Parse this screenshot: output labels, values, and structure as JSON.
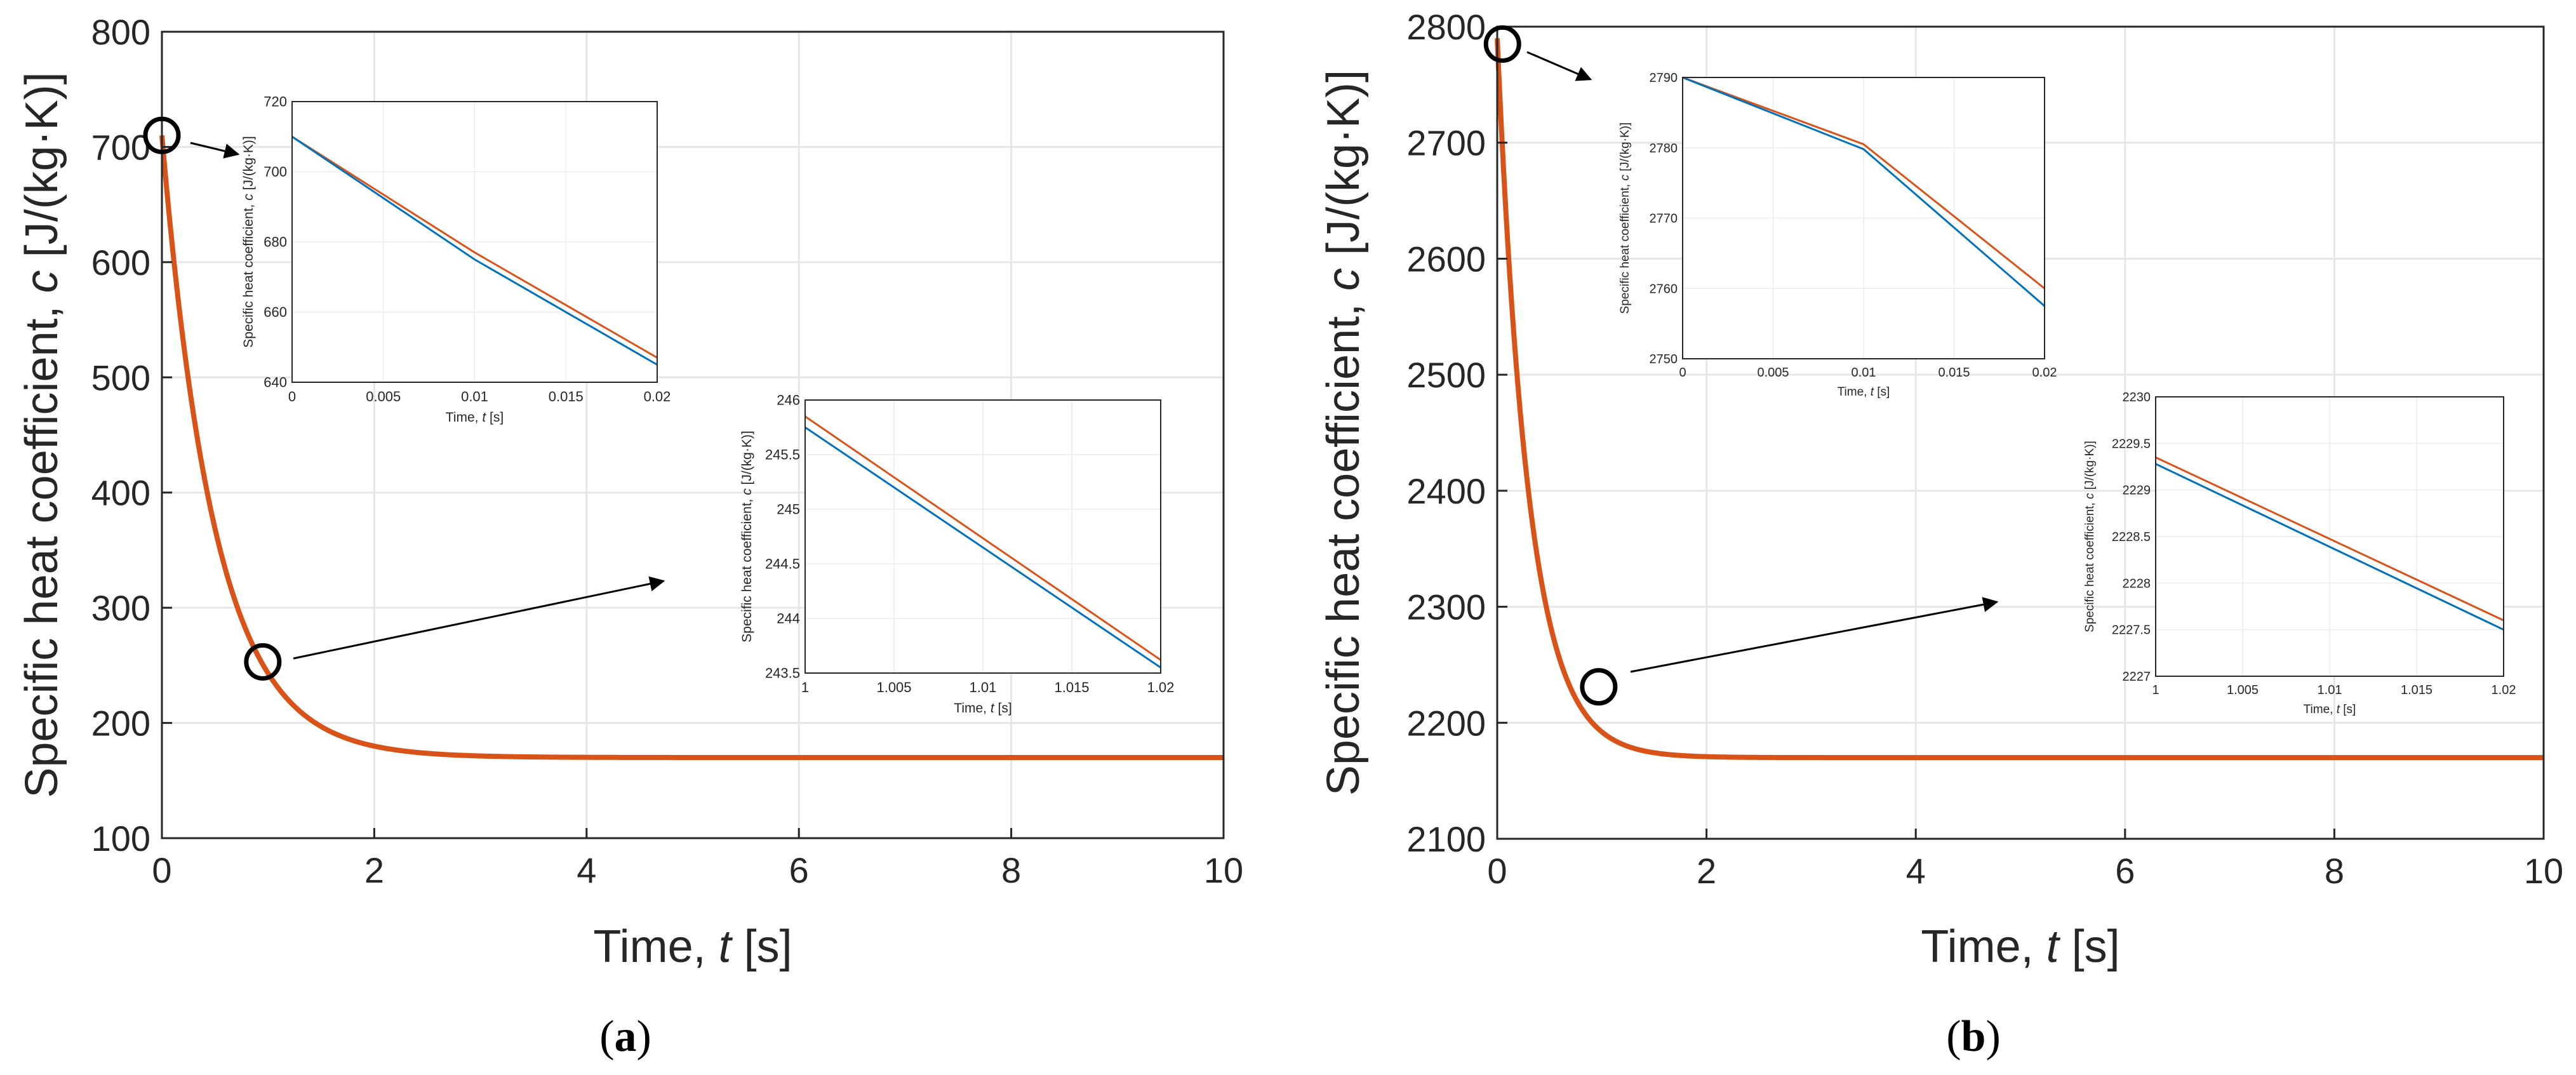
{
  "figure": {
    "panels": [
      {
        "caption_letter": "a",
        "chart_data": {
          "type": "line",
          "ylabel_prefix": "Specific heat coefficient, ",
          "ylabel_symbol": "c",
          "ylabel_suffix": " [J/(kg·K)]",
          "xlabel_prefix": "Time, ",
          "xlabel_symbol": "t",
          "xlabel_suffix": " [s]",
          "xlim": [
            0,
            10
          ],
          "ylim": [
            100,
            800
          ],
          "xticks": [
            0,
            2,
            4,
            6,
            8,
            10
          ],
          "yticks": [
            100,
            200,
            300,
            400,
            500,
            600,
            700,
            800
          ],
          "grid": true,
          "curve": {
            "c_start": 710,
            "c_end": 170,
            "tau": 0.5,
            "color": "#d95319"
          },
          "markers": [
            {
              "x": 0.0,
              "y": 710
            },
            {
              "x": 0.95,
              "y": 253
            }
          ],
          "insets": [
            {
              "xlim": [
                0,
                0.02
              ],
              "ylim": [
                640,
                720
              ],
              "xticks": [
                "0",
                "0.005",
                "0.01",
                "0.015",
                "0.02"
              ],
              "yticks": [
                "640",
                "660",
                "680",
                "700",
                "720"
              ],
              "ylabel_prefix": "Specific heat coefficient, ",
              "ylabel_symbol": "c",
              "ylabel_suffix": " [J/(kg·K)]",
              "xlabel_prefix": "Time, ",
              "xlabel_symbol": "t",
              "xlabel_suffix": " [s]",
              "series": [
                {
                  "name": "orange",
                  "color": "#d95319",
                  "x": [
                    0,
                    0.01,
                    0.02
                  ],
                  "y": [
                    710,
                    677,
                    647
                  ]
                },
                {
                  "name": "blue",
                  "color": "#0072bd",
                  "x": [
                    0,
                    0.01,
                    0.02
                  ],
                  "y": [
                    710,
                    675,
                    645
                  ]
                }
              ]
            },
            {
              "xlim": [
                1,
                1.02
              ],
              "ylim": [
                243.5,
                246
              ],
              "xticks": [
                "1",
                "1.005",
                "1.01",
                "1.015",
                "1.02"
              ],
              "yticks": [
                "243.5",
                "244",
                "244.5",
                "245",
                "245.5",
                "246"
              ],
              "ylabel_prefix": "Specific heat coefficient, ",
              "ylabel_symbol": "c",
              "ylabel_suffix": " [J/(kg·K)]",
              "xlabel_prefix": "Time, ",
              "xlabel_symbol": "t",
              "xlabel_suffix": " [s]",
              "series": [
                {
                  "name": "orange",
                  "color": "#d95319",
                  "x": [
                    1,
                    1.02
                  ],
                  "y": [
                    245.85,
                    243.62
                  ]
                },
                {
                  "name": "blue",
                  "color": "#0072bd",
                  "x": [
                    1,
                    1.02
                  ],
                  "y": [
                    245.75,
                    243.55
                  ]
                }
              ]
            }
          ]
        }
      },
      {
        "caption_letter": "b",
        "chart_data": {
          "type": "line",
          "ylabel_prefix": "Specific heat coefficient, ",
          "ylabel_symbol": "c",
          "ylabel_suffix": " [J/(kg·K)]",
          "xlabel_prefix": "Time, ",
          "xlabel_symbol": "t",
          "xlabel_suffix": " [s]",
          "xlim": [
            0,
            10
          ],
          "ylim": [
            2100,
            2800
          ],
          "xticks": [
            0,
            2,
            4,
            6,
            8,
            10
          ],
          "yticks": [
            2100,
            2200,
            2300,
            2400,
            2500,
            2600,
            2700,
            2800
          ],
          "grid": true,
          "curve": {
            "c_start": 2790,
            "c_end": 2170,
            "tau": 0.3,
            "color": "#d95319"
          },
          "markers": [
            {
              "x": 0.05,
              "y": 2785
            },
            {
              "x": 0.97,
              "y": 2231
            }
          ],
          "insets": [
            {
              "xlim": [
                0,
                0.02
              ],
              "ylim": [
                2750,
                2790
              ],
              "xticks": [
                "0",
                "0.005",
                "0.01",
                "0.015",
                "0.02"
              ],
              "yticks": [
                "2750",
                "2760",
                "2770",
                "2780",
                "2790"
              ],
              "ylabel_prefix": "Specific heat coefficient, ",
              "ylabel_symbol": "c",
              "ylabel_suffix": " [J/(kg·K)]",
              "xlabel_prefix": "Time, ",
              "xlabel_symbol": "t",
              "xlabel_suffix": " [s]",
              "series": [
                {
                  "name": "orange",
                  "color": "#d95319",
                  "x": [
                    0,
                    0.01,
                    0.02
                  ],
                  "y": [
                    2790,
                    2780.5,
                    2760
                  ]
                },
                {
                  "name": "blue",
                  "color": "#0072bd",
                  "x": [
                    0,
                    0.01,
                    0.02
                  ],
                  "y": [
                    2790,
                    2779.8,
                    2757.5
                  ]
                }
              ]
            },
            {
              "xlim": [
                1,
                1.02
              ],
              "ylim": [
                2227,
                2230
              ],
              "xticks": [
                "1",
                "1.005",
                "1.01",
                "1.015",
                "1.02"
              ],
              "yticks": [
                "2227",
                "2227.5",
                "2228",
                "2228.5",
                "2229",
                "2229.5",
                "2230"
              ],
              "ylabel_prefix": "Specific heat coefficient, ",
              "ylabel_symbol": "c",
              "ylabel_suffix": " [J/(kg·K)]",
              "xlabel_prefix": "Time, ",
              "xlabel_symbol": "t",
              "xlabel_suffix": " [s]",
              "series": [
                {
                  "name": "orange",
                  "color": "#d95319",
                  "x": [
                    1,
                    1.02
                  ],
                  "y": [
                    2229.35,
                    2227.6
                  ]
                },
                {
                  "name": "blue",
                  "color": "#0072bd",
                  "x": [
                    1,
                    1.02
                  ],
                  "y": [
                    2229.28,
                    2227.5
                  ]
                }
              ]
            }
          ]
        }
      }
    ]
  }
}
